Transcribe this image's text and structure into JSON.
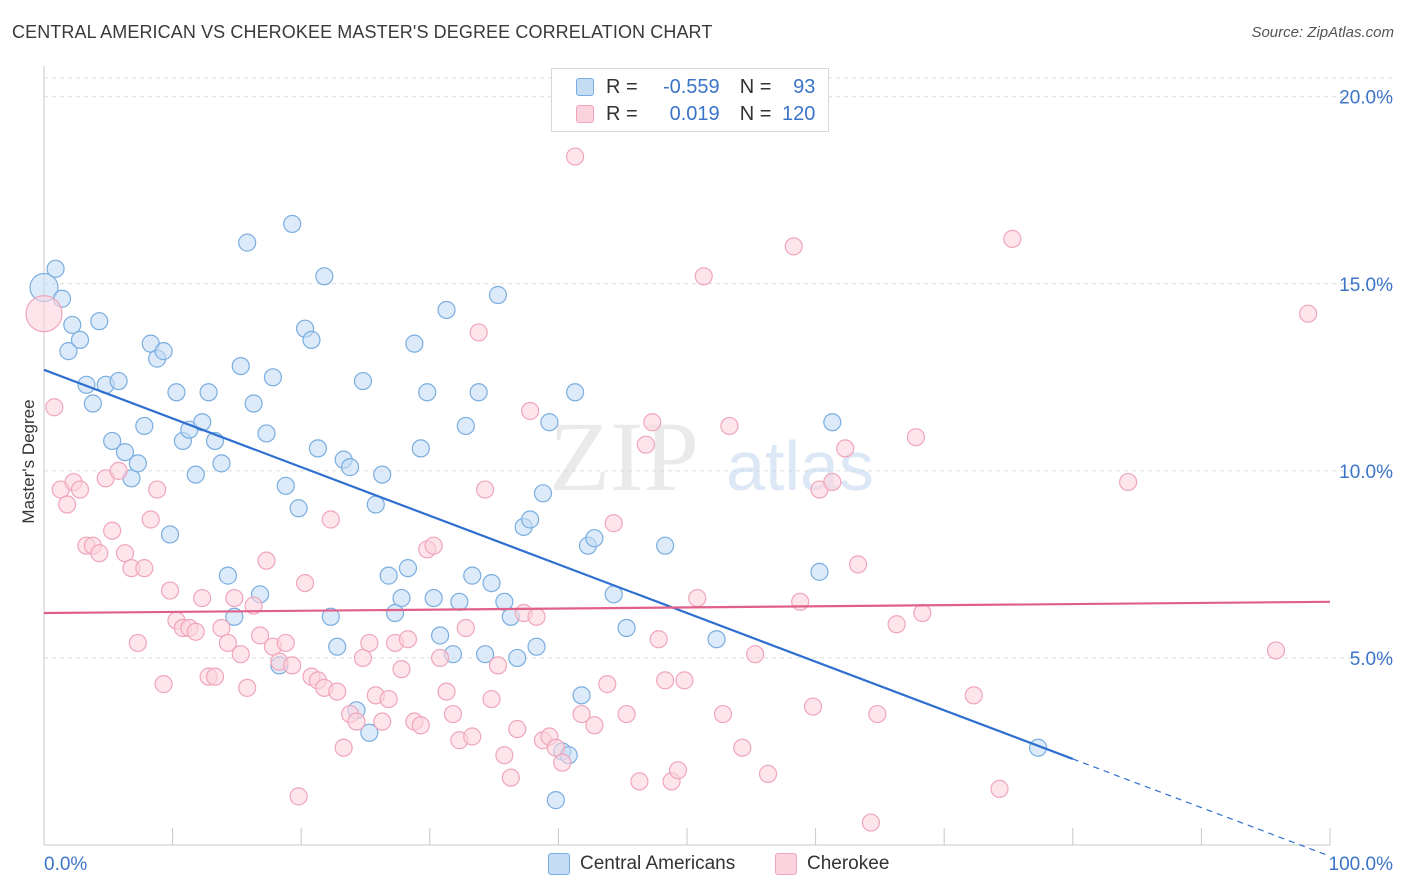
{
  "title": "CENTRAL AMERICAN VS CHEROKEE MASTER'S DEGREE CORRELATION CHART",
  "source": "Source: ZipAtlas.com",
  "watermark": {
    "zip": "ZIP",
    "atlas": "atlas"
  },
  "legend": {
    "rows": [
      {
        "r_label": "R =",
        "r_value": "-0.559",
        "n_label": "N =",
        "n_value": "93",
        "color": "#7aaee0",
        "fill": "#c5dcf5"
      },
      {
        "r_label": "R =",
        "r_value": "0.019",
        "n_label": "N =",
        "n_value": "120",
        "color": "#f0a5bc",
        "fill": "#fbd3de"
      }
    ]
  },
  "bottom_legend": [
    {
      "label": "Central Americans",
      "fill": "#c5dcf5",
      "border": "#7aaee0"
    },
    {
      "label": "Cherokee",
      "fill": "#fbd3de",
      "border": "#f0a5bc"
    }
  ],
  "chart_data": {
    "type": "scatter",
    "title": "CENTRAL AMERICAN VS CHEROKEE MASTER'S DEGREE CORRELATION CHART",
    "xlabel": "",
    "ylabel": "Master's Degree",
    "xlim": [
      0,
      100
    ],
    "ylim": [
      0,
      20.5
    ],
    "x_tick_labels": [
      "0.0%",
      "100.0%"
    ],
    "y_ticks": [
      5,
      10,
      15,
      20
    ],
    "y_tick_labels": [
      "5.0%",
      "10.0%",
      "15.0%",
      "20.0%"
    ],
    "grid": true,
    "legend_position": "top-center",
    "series": [
      {
        "name": "Central Americans",
        "color": "#7aaee0",
        "fill": "#c5dcf5",
        "line_color": "#2f6fd0",
        "trend": {
          "x0": 0,
          "y0": 12.7,
          "x1": 80,
          "y1": 2.3,
          "dash_to_x": 100,
          "dash_to_y": -0.3
        },
        "points": [
          [
            0.0,
            14.9
          ],
          [
            0.9,
            15.4
          ],
          [
            1.4,
            14.6
          ],
          [
            1.9,
            13.2
          ],
          [
            2.2,
            13.9
          ],
          [
            2.8,
            13.5
          ],
          [
            3.3,
            12.3
          ],
          [
            3.8,
            11.8
          ],
          [
            4.3,
            14.0
          ],
          [
            4.8,
            12.3
          ],
          [
            5.8,
            12.4
          ],
          [
            5.3,
            10.8
          ],
          [
            6.3,
            10.5
          ],
          [
            6.8,
            9.8
          ],
          [
            7.3,
            10.2
          ],
          [
            7.8,
            11.2
          ],
          [
            8.3,
            13.4
          ],
          [
            8.8,
            13.0
          ],
          [
            9.3,
            13.2
          ],
          [
            9.8,
            8.3
          ],
          [
            10.3,
            12.1
          ],
          [
            10.8,
            10.8
          ],
          [
            11.3,
            11.1
          ],
          [
            11.8,
            9.9
          ],
          [
            12.3,
            11.3
          ],
          [
            12.8,
            12.1
          ],
          [
            13.3,
            10.8
          ],
          [
            13.8,
            10.2
          ],
          [
            14.3,
            7.2
          ],
          [
            14.8,
            6.1
          ],
          [
            15.3,
            12.8
          ],
          [
            15.8,
            16.1
          ],
          [
            16.3,
            11.8
          ],
          [
            16.8,
            6.7
          ],
          [
            17.3,
            11.0
          ],
          [
            17.8,
            12.5
          ],
          [
            18.3,
            4.8
          ],
          [
            18.8,
            9.6
          ],
          [
            19.3,
            16.6
          ],
          [
            19.8,
            9.0
          ],
          [
            20.3,
            13.8
          ],
          [
            20.8,
            13.5
          ],
          [
            21.3,
            10.6
          ],
          [
            21.8,
            15.2
          ],
          [
            22.3,
            6.1
          ],
          [
            22.8,
            5.3
          ],
          [
            23.3,
            10.3
          ],
          [
            23.8,
            10.1
          ],
          [
            24.3,
            3.6
          ],
          [
            24.8,
            12.4
          ],
          [
            25.3,
            3.0
          ],
          [
            25.8,
            9.1
          ],
          [
            26.3,
            9.9
          ],
          [
            26.8,
            7.2
          ],
          [
            27.3,
            6.2
          ],
          [
            27.8,
            6.6
          ],
          [
            28.3,
            7.4
          ],
          [
            28.8,
            13.4
          ],
          [
            29.3,
            10.6
          ],
          [
            29.8,
            12.1
          ],
          [
            30.3,
            6.6
          ],
          [
            30.8,
            5.6
          ],
          [
            31.3,
            14.3
          ],
          [
            31.8,
            5.1
          ],
          [
            32.3,
            6.5
          ],
          [
            32.8,
            11.2
          ],
          [
            33.3,
            7.2
          ],
          [
            33.8,
            12.1
          ],
          [
            34.3,
            5.1
          ],
          [
            34.8,
            7.0
          ],
          [
            35.3,
            14.7
          ],
          [
            35.8,
            6.5
          ],
          [
            36.3,
            6.1
          ],
          [
            36.8,
            5.0
          ],
          [
            37.3,
            8.5
          ],
          [
            37.8,
            8.7
          ],
          [
            38.3,
            5.3
          ],
          [
            38.8,
            9.4
          ],
          [
            39.3,
            11.3
          ],
          [
            40.3,
            2.5
          ],
          [
            39.8,
            1.2
          ],
          [
            40.8,
            2.4
          ],
          [
            41.3,
            12.1
          ],
          [
            41.8,
            4.0
          ],
          [
            42.3,
            8.0
          ],
          [
            42.8,
            8.2
          ],
          [
            44.3,
            6.7
          ],
          [
            45.3,
            5.8
          ],
          [
            48.3,
            8.0
          ],
          [
            52.3,
            5.5
          ],
          [
            60.3,
            7.3
          ],
          [
            61.3,
            11.3
          ],
          [
            77.3,
            2.6
          ]
        ],
        "radii": [
          14,
          12
        ]
      },
      {
        "name": "Cherokee",
        "color": "#f0a5bc",
        "fill": "#fbd3de",
        "line_color": "#e0608a",
        "trend": {
          "x0": 0,
          "y0": 6.2,
          "x1": 100,
          "y1": 6.5
        },
        "points": [
          [
            0.0,
            14.2
          ],
          [
            0.8,
            11.7
          ],
          [
            1.3,
            9.5
          ],
          [
            1.8,
            9.1
          ],
          [
            2.3,
            9.7
          ],
          [
            2.8,
            9.5
          ],
          [
            3.3,
            8.0
          ],
          [
            3.8,
            8.0
          ],
          [
            4.3,
            7.8
          ],
          [
            4.8,
            9.8
          ],
          [
            5.3,
            8.4
          ],
          [
            5.8,
            10.0
          ],
          [
            6.3,
            7.8
          ],
          [
            6.8,
            7.4
          ],
          [
            7.3,
            5.4
          ],
          [
            7.8,
            7.4
          ],
          [
            8.3,
            8.7
          ],
          [
            8.8,
            9.5
          ],
          [
            9.3,
            4.3
          ],
          [
            9.8,
            6.8
          ],
          [
            10.3,
            6.0
          ],
          [
            10.8,
            5.8
          ],
          [
            11.3,
            5.8
          ],
          [
            11.8,
            5.7
          ],
          [
            12.3,
            6.6
          ],
          [
            12.8,
            4.5
          ],
          [
            13.3,
            4.5
          ],
          [
            13.8,
            5.8
          ],
          [
            14.3,
            5.4
          ],
          [
            14.8,
            6.6
          ],
          [
            15.3,
            5.1
          ],
          [
            15.8,
            4.2
          ],
          [
            16.3,
            6.4
          ],
          [
            16.8,
            5.6
          ],
          [
            17.3,
            7.6
          ],
          [
            17.8,
            5.3
          ],
          [
            18.3,
            4.9
          ],
          [
            18.8,
            5.4
          ],
          [
            19.3,
            4.8
          ],
          [
            19.8,
            1.3
          ],
          [
            20.3,
            7.0
          ],
          [
            20.8,
            4.5
          ],
          [
            21.3,
            4.4
          ],
          [
            21.8,
            4.2
          ],
          [
            22.3,
            8.7
          ],
          [
            22.8,
            4.1
          ],
          [
            23.3,
            2.6
          ],
          [
            23.8,
            3.5
          ],
          [
            24.3,
            3.3
          ],
          [
            24.8,
            5.0
          ],
          [
            25.3,
            5.4
          ],
          [
            25.8,
            4.0
          ],
          [
            26.3,
            3.3
          ],
          [
            26.8,
            3.9
          ],
          [
            27.3,
            5.4
          ],
          [
            27.8,
            4.7
          ],
          [
            28.3,
            5.5
          ],
          [
            28.8,
            3.3
          ],
          [
            29.3,
            3.2
          ],
          [
            29.8,
            7.9
          ],
          [
            30.3,
            8.0
          ],
          [
            30.8,
            5.0
          ],
          [
            31.3,
            4.1
          ],
          [
            31.8,
            3.5
          ],
          [
            32.3,
            2.8
          ],
          [
            32.8,
            5.8
          ],
          [
            33.3,
            2.9
          ],
          [
            33.8,
            13.7
          ],
          [
            34.3,
            9.5
          ],
          [
            34.8,
            3.9
          ],
          [
            35.3,
            4.8
          ],
          [
            35.8,
            2.4
          ],
          [
            36.3,
            1.8
          ],
          [
            36.8,
            3.1
          ],
          [
            37.3,
            6.2
          ],
          [
            37.8,
            11.6
          ],
          [
            38.3,
            6.1
          ],
          [
            38.8,
            2.8
          ],
          [
            39.3,
            2.9
          ],
          [
            39.8,
            2.6
          ],
          [
            40.3,
            2.2
          ],
          [
            41.3,
            18.4
          ],
          [
            41.8,
            3.5
          ],
          [
            42.8,
            3.2
          ],
          [
            43.8,
            4.3
          ],
          [
            44.3,
            8.6
          ],
          [
            45.3,
            3.5
          ],
          [
            46.3,
            1.7
          ],
          [
            46.8,
            10.7
          ],
          [
            47.3,
            11.3
          ],
          [
            47.8,
            5.5
          ],
          [
            48.3,
            4.4
          ],
          [
            48.8,
            1.7
          ],
          [
            49.3,
            2.0
          ],
          [
            49.8,
            4.4
          ],
          [
            50.8,
            6.6
          ],
          [
            51.3,
            15.2
          ],
          [
            52.8,
            3.5
          ],
          [
            53.3,
            11.2
          ],
          [
            54.3,
            2.6
          ],
          [
            55.3,
            5.1
          ],
          [
            56.3,
            1.9
          ],
          [
            58.3,
            16.0
          ],
          [
            58.8,
            6.5
          ],
          [
            59.8,
            3.7
          ],
          [
            60.3,
            9.5
          ],
          [
            61.3,
            9.7
          ],
          [
            62.3,
            10.6
          ],
          [
            63.3,
            7.5
          ],
          [
            64.3,
            0.6
          ],
          [
            64.8,
            3.5
          ],
          [
            66.3,
            5.9
          ],
          [
            67.8,
            10.9
          ],
          [
            68.3,
            6.2
          ],
          [
            72.3,
            4.0
          ],
          [
            74.3,
            1.5
          ],
          [
            75.3,
            16.2
          ],
          [
            84.3,
            9.7
          ],
          [
            98.3,
            14.2
          ],
          [
            95.8,
            5.2
          ]
        ],
        "radii": [
          18,
          12
        ]
      }
    ]
  }
}
